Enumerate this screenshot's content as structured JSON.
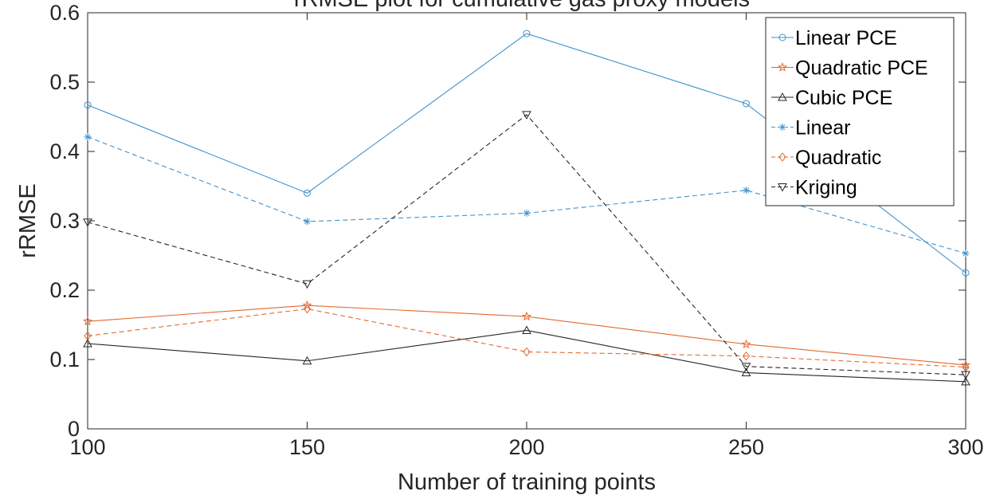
{
  "chart_data": {
    "type": "line",
    "title": "rRMSE plot for cumulative gas proxy models",
    "xlabel": "Number of training points",
    "ylabel": "rRMSE",
    "x": [
      100,
      150,
      200,
      250,
      300
    ],
    "xlim": [
      100,
      300
    ],
    "ylim": [
      0,
      0.6
    ],
    "xticks": [
      "100",
      "150",
      "200",
      "250",
      "300"
    ],
    "yticks": [
      "0",
      "0.1",
      "0.2",
      "0.3",
      "0.4",
      "0.5",
      "0.6"
    ],
    "grid": false,
    "legend_position": "top-right",
    "series": [
      {
        "name": "Linear PCE",
        "values": [
          0.467,
          0.34,
          0.57,
          0.469,
          0.225
        ],
        "color": "#3f92cc",
        "dash": "solid",
        "marker": "circle"
      },
      {
        "name": "Quadratic PCE",
        "values": [
          0.155,
          0.178,
          0.162,
          0.122,
          0.092
        ],
        "color": "#e26a30",
        "dash": "solid",
        "marker": "star"
      },
      {
        "name": "Cubic PCE",
        "values": [
          0.123,
          0.098,
          0.142,
          0.081,
          0.068
        ],
        "color": "#262626",
        "dash": "solid",
        "marker": "triangle-up"
      },
      {
        "name": "Linear",
        "values": [
          0.421,
          0.299,
          0.311,
          0.344,
          0.253
        ],
        "color": "#3f92cc",
        "dash": "dashed",
        "marker": "asterisk"
      },
      {
        "name": "Quadratic",
        "values": [
          0.134,
          0.173,
          0.111,
          0.105,
          0.089
        ],
        "color": "#e26a30",
        "dash": "dashed",
        "marker": "diamond"
      },
      {
        "name": "Kriging",
        "values": [
          0.298,
          0.209,
          0.453,
          0.09,
          0.078
        ],
        "color": "#262626",
        "dash": "dashed",
        "marker": "triangle-down"
      }
    ]
  }
}
